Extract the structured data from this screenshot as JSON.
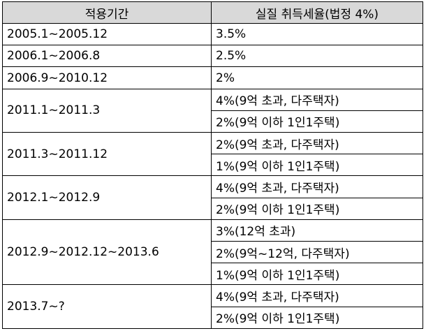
{
  "table": {
    "header": [
      "적용기간",
      "실질 취득세율(법정 4%)"
    ],
    "rows": [
      {
        "period": "2005.1~2005.12",
        "rates": [
          "3.5%"
        ]
      },
      {
        "period": "2006.1~2006.8",
        "rates": [
          "2.5%"
        ]
      },
      {
        "period": "2006.9~2010.12",
        "rates": [
          "2%"
        ]
      },
      {
        "period": "2011.1~2011.3",
        "rates": [
          "4%(9억 초과, 다주택자)",
          "2%(9억 이하 1인1주택)"
        ]
      },
      {
        "period": "2011.3~2011.12",
        "rates": [
          "2%(9억 초과, 다주택자)",
          "1%(9억 이하 1인1주택)"
        ]
      },
      {
        "period": "2012.1~2012.9",
        "rates": [
          "4%(9억 초과, 다주택자)",
          "2%(9억 이하 1인1주택)"
        ]
      },
      {
        "period": "2012.9~2012.12~2013.6",
        "rates": [
          "3%(12억 초과)",
          "2%(9억~12억, 다주택자)",
          "1%(9억 이하 1인1주택)"
        ]
      },
      {
        "period": "2013.7~?",
        "rates": [
          "4%(9억 초과, 다주택자)",
          "2%(9억 이하 1인1주택)"
        ]
      }
    ]
  }
}
